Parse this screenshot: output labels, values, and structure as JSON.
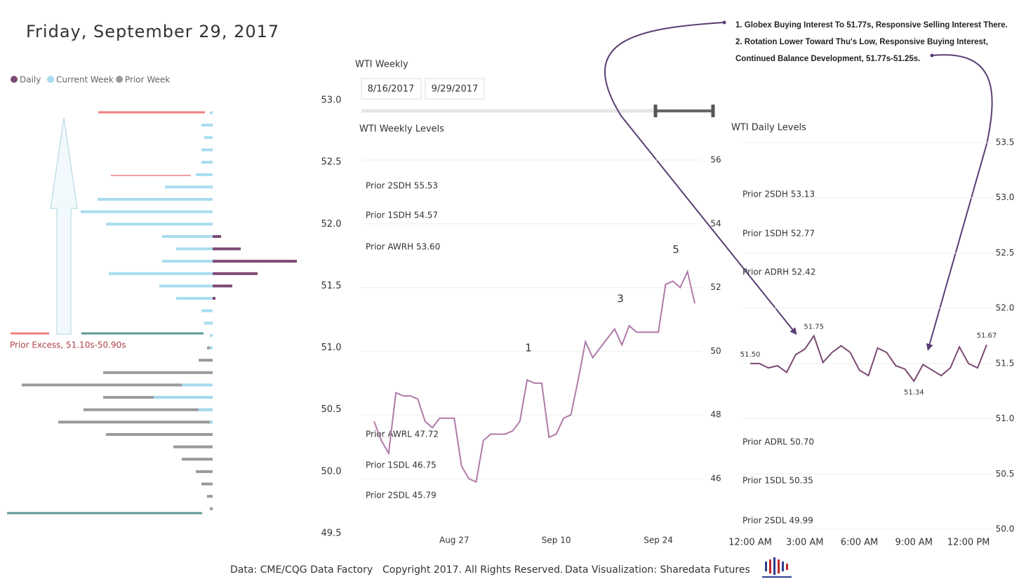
{
  "header": {
    "title": "Friday, September 29, 2017"
  },
  "slicer": {
    "title": "WTI Weekly",
    "start": "8/16/2017",
    "end": "9/29/2017"
  },
  "notes": [
    "1. Globex Buying Interest To 51.77s, Responsive Selling Interest There.",
    "2. Rotation Lower Toward Thu's Low, Responsive Buying Interest, Continued Balance Development, 51.77s-51.25s."
  ],
  "footer": [
    "Data: CME/CQG Data Factory",
    "Copyright 2017. All Rights Reserved.",
    "Data Visualization: Sharedata Futures"
  ],
  "chart_data": [
    {
      "type": "profile",
      "y": [
        52.9,
        52.8,
        52.7,
        52.6,
        52.5,
        52.4,
        52.3,
        52.2,
        52.1,
        52.0,
        51.9,
        51.8,
        51.7,
        51.6,
        51.5,
        51.4,
        51.3,
        51.2,
        51.1,
        51.0,
        50.9,
        50.8,
        50.7,
        50.6,
        50.5,
        50.4,
        50.3,
        50.2,
        50.1,
        50.0,
        49.9,
        49.8,
        49.7
      ],
      "series": [
        {
          "name": "Daily",
          "color": "#7b4a72",
          "side": "right",
          "values": [
            0,
            0,
            0,
            0,
            0,
            0,
            0,
            0,
            0,
            0,
            3,
            10,
            30,
            16,
            7,
            1,
            0,
            0,
            0,
            0,
            0,
            0,
            0,
            0,
            0,
            0,
            0,
            0,
            0,
            0,
            0,
            0,
            0
          ]
        },
        {
          "name": "Current Week",
          "color": "#a8dcef",
          "side": "left",
          "values": [
            1,
            4,
            3,
            4,
            4,
            6,
            17,
            41,
            47,
            38,
            18,
            13,
            18,
            37,
            19,
            13,
            4,
            3,
            1,
            1,
            0,
            0,
            11,
            21,
            5,
            1,
            0,
            0,
            0,
            0,
            0,
            0,
            0
          ]
        },
        {
          "name": "Prior Week",
          "color": "#9a9a9a",
          "side": "left",
          "values": [
            0,
            0,
            0,
            0,
            0,
            0,
            0,
            0,
            0,
            0,
            0,
            0,
            0,
            0,
            0,
            0,
            0,
            0,
            0,
            2,
            5,
            39,
            68,
            39,
            46,
            55,
            38,
            14,
            11,
            6,
            4,
            2,
            1
          ]
        }
      ],
      "ylim": [
        49.5,
        53.0
      ],
      "yticks": [
        {
          "value": 53,
          "label": "53.0"
        },
        52.5,
        {
          "value": 52,
          "label": "52.0"
        },
        51.5,
        {
          "value": 51,
          "label": "51.0"
        },
        50.5,
        {
          "value": 50,
          "label": "50.0"
        },
        49.5
      ],
      "annotation": "Prior Excess, 51.10s-50.90s"
    },
    {
      "type": "line",
      "title": "WTI Weekly Levels",
      "x": [
        "Aug 16",
        "Aug 17",
        "Aug 18",
        "Aug 19",
        "Aug 20",
        "Aug 21",
        "Aug 22",
        "Aug 23",
        "Aug 24",
        "Aug 25",
        "Aug 26",
        "Aug 27",
        "Aug 28",
        "Aug 29",
        "Aug 30",
        "Aug 31",
        "Sep 1",
        "Sep 2",
        "Sep 3",
        "Sep 4",
        "Sep 5",
        "Sep 6",
        "Sep 7",
        "Sep 8",
        "Sep 9",
        "Sep 10",
        "Sep 11",
        "Sep 12",
        "Sep 13",
        "Sep 14",
        "Sep 15",
        "Sep 16",
        "Sep 17",
        "Sep 18",
        "Sep 19",
        "Sep 20",
        "Sep 21",
        "Sep 22",
        "Sep 23",
        "Sep 24",
        "Sep 25",
        "Sep 26",
        "Sep 27",
        "Sep 28",
        "Sep 29"
      ],
      "values": [
        47.8,
        47.2,
        46.8,
        48.7,
        48.6,
        48.6,
        48.5,
        47.8,
        47.6,
        47.9,
        47.9,
        47.9,
        46.4,
        46.0,
        45.9,
        47.2,
        47.4,
        47.4,
        47.4,
        47.5,
        47.8,
        49.1,
        49.0,
        49.0,
        47.3,
        47.4,
        47.9,
        48.0,
        49.1,
        50.3,
        49.8,
        50.1,
        50.4,
        50.7,
        50.2,
        50.8,
        50.6,
        50.6,
        50.6,
        50.6,
        52.1,
        52.2,
        52.0,
        52.5,
        51.5
      ],
      "color": "#b07aa8",
      "xticks": [
        "Aug 27",
        "Sep 10",
        "Sep 24"
      ],
      "ylim": [
        44.8,
        56.6
      ],
      "yticks": [
        46,
        48,
        50,
        52,
        54,
        56
      ],
      "grid": true,
      "levels": [
        {
          "label": "Prior 2SDH 55.53",
          "color": "#b0414a"
        },
        {
          "label": "Prior 1SDH 54.57",
          "color": "#e0707a"
        },
        {
          "label": "Prior AWRH 53.60",
          "color": "#f0a6a6"
        },
        {
          "label": "Prior AWRL 47.72",
          "color": "#7aa6b4"
        },
        {
          "label": "Prior 1SDL 46.75",
          "color": "#6f96a6"
        },
        {
          "label": "Prior 2SDL 45.79",
          "color": "#5f8898"
        }
      ],
      "waves": [
        "1",
        "3",
        "5"
      ],
      "wave_color": "#8ccde6"
    },
    {
      "type": "line",
      "title": "WTI Daily Levels",
      "categories": [
        "12:00 AM",
        null,
        null,
        null,
        null,
        null,
        "3:00 AM",
        null,
        null,
        null,
        null,
        null,
        "6:00 AM",
        null,
        null,
        null,
        null,
        null,
        "9:00 AM",
        null,
        null,
        null,
        null,
        null,
        "12:00 PM",
        null,
        null
      ],
      "values": [
        51.5,
        51.5,
        51.46,
        51.48,
        51.42,
        51.58,
        51.63,
        51.75,
        51.51,
        51.6,
        51.66,
        51.6,
        51.44,
        51.39,
        51.64,
        51.6,
        51.48,
        51.45,
        51.34,
        51.49,
        51.44,
        51.39,
        51.46,
        51.65,
        51.5,
        51.46,
        51.67
      ],
      "value_labels": [
        "51.50",
        null,
        null,
        null,
        null,
        null,
        null,
        "51.75",
        null,
        null,
        null,
        null,
        null,
        null,
        null,
        null,
        null,
        null,
        "51.34",
        null,
        null,
        null,
        null,
        null,
        null,
        null,
        "51.67"
      ],
      "color": "#7b4a72",
      "ylim": [
        49.9,
        53.6
      ],
      "yticks": [
        {
          "value": 50,
          "label": "50.0"
        },
        50.5,
        {
          "value": 51,
          "label": "51.0"
        },
        51.5,
        {
          "value": 52,
          "label": "52.0"
        },
        52.5,
        {
          "value": 53,
          "label": "53.0"
        },
        53.5
      ],
      "grid": true,
      "levels": [
        {
          "label": "Prior 2SDH 53.13",
          "color": "#b0414a"
        },
        {
          "label": "Prior 1SDH 52.77",
          "color": "#b0414a"
        },
        {
          "label": "Prior ADRH 52.42",
          "color": "#b0414a"
        },
        {
          "label": "Prior ADRL 50.70",
          "color": "#5f8898"
        },
        {
          "label": "Prior 1SDL 50.35",
          "color": "#5f8898"
        },
        {
          "label": "Prior 2SDL 49.99",
          "color": "#5f8898"
        }
      ]
    }
  ]
}
